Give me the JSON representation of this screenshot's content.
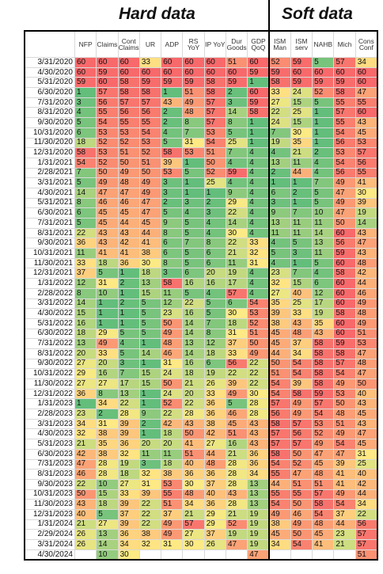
{
  "header": {
    "hard_title": "Hard data",
    "soft_title": "Soft data"
  },
  "table": {
    "columns": [
      "NFP",
      "Claims",
      "Cont Claims",
      "UR",
      "ADP",
      "RS YoY",
      "IP YoY",
      "Dur Goods",
      "GDP QoQ",
      "ISM Man",
      "ISM serv",
      "NAHB",
      "Mich",
      "Cons Conf"
    ],
    "soft_start": 9,
    "color_scale": {
      "low": "#63be7b",
      "mid": "#ffeb84",
      "high": "#f8696b"
    },
    "rows": [
      {
        "date": "3/31/2020",
        "values": [
          60,
          60,
          60,
          33,
          60,
          60,
          60,
          51,
          60,
          52,
          59,
          5,
          57,
          34
        ]
      },
      {
        "date": "4/30/2020",
        "values": [
          60,
          59,
          60,
          60,
          60,
          60,
          60,
          60,
          59,
          59,
          60,
          60,
          60,
          60
        ]
      },
      {
        "date": "5/31/2020",
        "values": [
          59,
          60,
          58,
          59,
          59,
          59,
          58,
          59,
          1,
          58,
          59,
          59,
          59,
          60
        ]
      },
      {
        "date": "6/30/2020",
        "values": [
          1,
          57,
          58,
          58,
          1,
          51,
          58,
          2,
          60,
          33,
          24,
          52,
          58,
          47
        ]
      },
      {
        "date": "7/31/2020",
        "values": [
          3,
          56,
          57,
          57,
          43,
          49,
          57,
          3,
          59,
          27,
          15,
          5,
          55,
          55
        ]
      },
      {
        "date": "8/31/2020",
        "values": [
          4,
          55,
          56,
          56,
          2,
          48,
          57,
          14,
          58,
          22,
          25,
          1,
          57,
          60
        ]
      },
      {
        "date": "9/30/2020",
        "values": [
          5,
          54,
          55,
          55,
          2,
          8,
          57,
          8,
          1,
          24,
          15,
          1,
          55,
          43
        ]
      },
      {
        "date": "10/31/2020",
        "values": [
          6,
          53,
          53,
          54,
          4,
          7,
          53,
          5,
          1,
          7,
          30,
          1,
          54,
          45
        ]
      },
      {
        "date": "11/30/2020",
        "values": [
          18,
          52,
          52,
          53,
          5,
          31,
          54,
          25,
          1,
          19,
          35,
          1,
          56,
          53
        ]
      },
      {
        "date": "12/31/2020",
        "values": [
          58,
          53,
          51,
          52,
          58,
          53,
          51,
          7,
          4,
          4,
          21,
          2,
          53,
          57
        ]
      },
      {
        "date": "1/31/2021",
        "values": [
          54,
          52,
          50,
          51,
          39,
          1,
          50,
          4,
          4,
          13,
          11,
          4,
          54,
          56
        ]
      },
      {
        "date": "2/28/2021",
        "values": [
          7,
          50,
          49,
          50,
          53,
          5,
          52,
          59,
          4,
          2,
          44,
          4,
          56,
          55
        ]
      },
      {
        "date": "3/31/2021",
        "values": [
          5,
          49,
          48,
          49,
          3,
          1,
          25,
          4,
          4,
          1,
          1,
          7,
          49,
          41
        ]
      },
      {
        "date": "4/30/2021",
        "values": [
          14,
          47,
          47,
          49,
          3,
          1,
          1,
          9,
          4,
          6,
          2,
          5,
          47,
          30
        ]
      },
      {
        "date": "5/31/2021",
        "values": [
          8,
          46,
          46,
          47,
          2,
          3,
          2,
          29,
          4,
          3,
          1,
          5,
          49,
          39
        ]
      },
      {
        "date": "6/30/2021",
        "values": [
          6,
          45,
          45,
          47,
          5,
          4,
          3,
          22,
          4,
          9,
          7,
          10,
          47,
          19
        ]
      },
      {
        "date": "7/31/2021",
        "values": [
          5,
          45,
          44,
          45,
          9,
          5,
          4,
          14,
          4,
          13,
          11,
          11,
          50,
          14
        ]
      },
      {
        "date": "8/31/2021",
        "values": [
          22,
          43,
          43,
          44,
          8,
          5,
          4,
          30,
          4,
          11,
          11,
          14,
          60,
          43
        ]
      },
      {
        "date": "9/30/2021",
        "values": [
          36,
          43,
          42,
          41,
          6,
          7,
          8,
          22,
          33,
          4,
          5,
          13,
          56,
          47
        ]
      },
      {
        "date": "10/31/2021",
        "values": [
          11,
          41,
          41,
          38,
          6,
          5,
          6,
          21,
          32,
          5,
          3,
          11,
          59,
          43
        ]
      },
      {
        "date": "11/30/2021",
        "values": [
          33,
          18,
          36,
          30,
          8,
          5,
          6,
          11,
          31,
          4,
          1,
          5,
          60,
          48
        ]
      },
      {
        "date": "12/31/2021",
        "values": [
          37,
          5,
          1,
          18,
          3,
          6,
          20,
          19,
          4,
          23,
          7,
          4,
          58,
          42
        ]
      },
      {
        "date": "1/31/2022",
        "values": [
          12,
          31,
          2,
          13,
          58,
          16,
          16,
          17,
          4,
          32,
          15,
          6,
          60,
          44
        ]
      },
      {
        "date": "2/28/2022",
        "values": [
          8,
          10,
          1,
          15,
          11,
          5,
          4,
          57,
          4,
          27,
          40,
          12,
          60,
          46
        ]
      },
      {
        "date": "3/31/2022",
        "values": [
          14,
          1,
          2,
          5,
          12,
          22,
          5,
          6,
          54,
          35,
          25,
          17,
          60,
          49
        ]
      },
      {
        "date": "4/30/2022",
        "values": [
          15,
          1,
          1,
          5,
          23,
          16,
          5,
          30,
          53,
          39,
          33,
          19,
          58,
          48
        ]
      },
      {
        "date": "5/31/2022",
        "values": [
          16,
          1,
          1,
          5,
          50,
          14,
          7,
          18,
          52,
          38,
          43,
          35,
          60,
          49
        ]
      },
      {
        "date": "6/30/2022",
        "values": [
          18,
          29,
          5,
          5,
          49,
          14,
          8,
          31,
          51,
          45,
          48,
          43,
          60,
          51
        ]
      },
      {
        "date": "7/31/2022",
        "values": [
          13,
          49,
          4,
          1,
          48,
          13,
          12,
          37,
          50,
          45,
          37,
          58,
          59,
          53
        ]
      },
      {
        "date": "8/31/2022",
        "values": [
          20,
          33,
          5,
          14,
          46,
          14,
          18,
          33,
          49,
          44,
          34,
          58,
          58,
          47
        ]
      },
      {
        "date": "9/30/2022",
        "values": [
          27,
          20,
          3,
          1,
          31,
          16,
          6,
          56,
          22,
          50,
          54,
          58,
          57,
          48
        ]
      },
      {
        "date": "10/31/2022",
        "values": [
          29,
          16,
          7,
          15,
          24,
          18,
          19,
          22,
          22,
          51,
          54,
          58,
          54,
          47
        ]
      },
      {
        "date": "11/30/2022",
        "values": [
          27,
          27,
          17,
          15,
          50,
          21,
          26,
          39,
          22,
          54,
          39,
          58,
          49,
          50
        ]
      },
      {
        "date": "12/31/2022",
        "values": [
          36,
          8,
          13,
          1,
          24,
          20,
          33,
          49,
          30,
          54,
          58,
          59,
          53,
          40
        ]
      },
      {
        "date": "1/31/2023",
        "values": [
          1,
          34,
          22,
          1,
          52,
          22,
          36,
          5,
          28,
          57,
          49,
          57,
          50,
          43
        ]
      },
      {
        "date": "2/28/2023",
        "values": [
          23,
          2,
          28,
          9,
          22,
          28,
          36,
          46,
          28,
          56,
          49,
          54,
          48,
          45
        ]
      },
      {
        "date": "3/31/2023",
        "values": [
          34,
          31,
          39,
          2,
          42,
          43,
          38,
          45,
          43,
          58,
          57,
          53,
          51,
          43
        ]
      },
      {
        "date": "4/30/2023",
        "values": [
          32,
          38,
          39,
          1,
          18,
          50,
          42,
          51,
          43,
          57,
          56,
          52,
          49,
          47
        ]
      },
      {
        "date": "5/31/2023",
        "values": [
          21,
          35,
          36,
          20,
          20,
          41,
          27,
          16,
          43,
          57,
          57,
          49,
          54,
          45
        ]
      },
      {
        "date": "6/30/2023",
        "values": [
          42,
          38,
          32,
          11,
          11,
          51,
          44,
          21,
          36,
          58,
          50,
          47,
          47,
          31
        ]
      },
      {
        "date": "7/31/2023",
        "values": [
          47,
          28,
          19,
          3,
          18,
          40,
          48,
          28,
          36,
          54,
          52,
          45,
          39,
          25
        ]
      },
      {
        "date": "8/31/2023",
        "values": [
          46,
          28,
          18,
          32,
          38,
          36,
          36,
          28,
          34,
          55,
          47,
          48,
          41,
          40
        ]
      },
      {
        "date": "9/30/2023",
        "values": [
          22,
          10,
          27,
          31,
          53,
          30,
          37,
          28,
          13,
          44,
          51,
          51,
          41,
          42
        ]
      },
      {
        "date": "10/31/2023",
        "values": [
          50,
          15,
          33,
          39,
          55,
          48,
          40,
          43,
          13,
          55,
          55,
          57,
          49,
          44
        ]
      },
      {
        "date": "11/30/2023",
        "values": [
          43,
          18,
          39,
          22,
          51,
          34,
          36,
          28,
          13,
          54,
          50,
          58,
          54,
          34
        ]
      },
      {
        "date": "12/31/2023",
        "values": [
          40,
          5,
          37,
          22,
          37,
          21,
          29,
          21,
          19,
          49,
          46,
          54,
          37,
          22
        ]
      },
      {
        "date": "1/31/2024",
        "values": [
          21,
          27,
          39,
          22,
          49,
          57,
          29,
          52,
          19,
          38,
          49,
          48,
          44,
          56
        ]
      },
      {
        "date": "2/29/2024",
        "values": [
          26,
          13,
          36,
          38,
          49,
          27,
          37,
          19,
          19,
          45,
          50,
          45,
          23,
          57
        ]
      },
      {
        "date": "3/31/2024",
        "values": [
          26,
          14,
          34,
          32,
          31,
          30,
          26,
          47,
          19,
          34,
          54,
          41,
          21,
          57
        ]
      },
      {
        "date": "4/30/2024",
        "values": [
          null,
          10,
          30,
          null,
          null,
          null,
          null,
          null,
          47,
          null,
          null,
          null,
          null,
          51
        ]
      }
    ]
  }
}
